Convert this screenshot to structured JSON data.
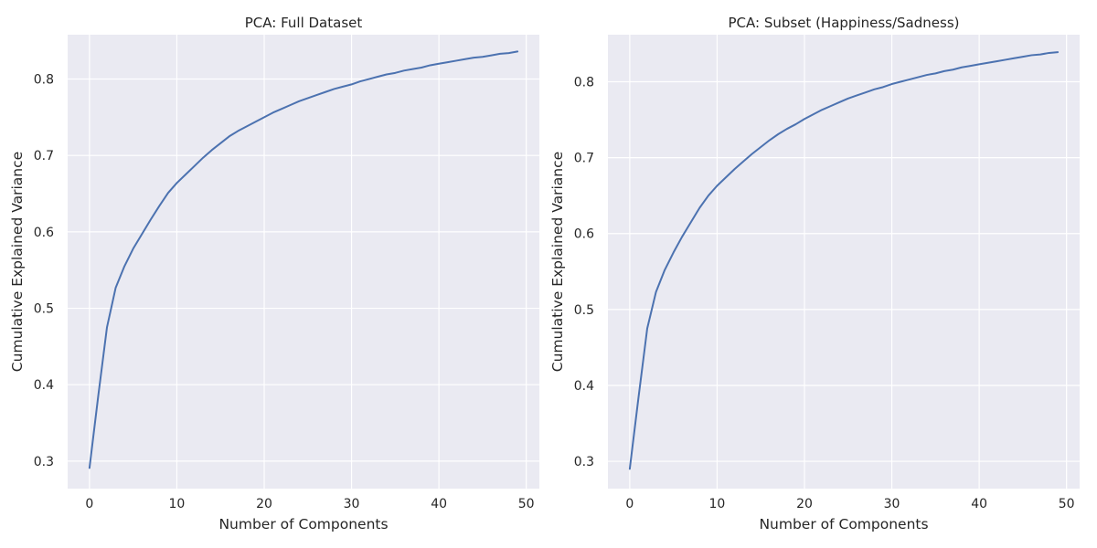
{
  "chart_data": [
    {
      "type": "line",
      "title": "PCA: Full Dataset",
      "xlabel": "Number of Components",
      "ylabel": "Cumulative Explained Variance",
      "xlim": [
        -2.5,
        51.5
      ],
      "ylim": [
        0.264,
        0.858
      ],
      "xticks": [
        0,
        10,
        20,
        30,
        40,
        50
      ],
      "yticks": [
        0.3,
        0.4,
        0.5,
        0.6,
        0.7,
        0.8
      ],
      "xtick_labels": [
        "0",
        "10",
        "20",
        "30",
        "40",
        "50"
      ],
      "ytick_labels": [
        "0.3",
        "0.4",
        "0.5",
        "0.6",
        "0.7",
        "0.8"
      ],
      "grid": true,
      "line_color": "#4c72b0",
      "x": [
        0,
        1,
        2,
        3,
        4,
        5,
        6,
        7,
        8,
        9,
        10,
        11,
        12,
        13,
        14,
        15,
        16,
        17,
        18,
        19,
        20,
        21,
        22,
        23,
        24,
        25,
        26,
        27,
        28,
        29,
        30,
        31,
        32,
        33,
        34,
        35,
        36,
        37,
        38,
        39,
        40,
        41,
        42,
        43,
        44,
        45,
        46,
        47,
        48,
        49
      ],
      "y": [
        0.291,
        0.385,
        0.475,
        0.527,
        0.555,
        0.578,
        0.597,
        0.616,
        0.634,
        0.651,
        0.664,
        0.675,
        0.686,
        0.697,
        0.707,
        0.716,
        0.725,
        0.732,
        0.738,
        0.744,
        0.75,
        0.756,
        0.761,
        0.766,
        0.771,
        0.775,
        0.779,
        0.783,
        0.787,
        0.79,
        0.793,
        0.797,
        0.8,
        0.803,
        0.806,
        0.808,
        0.811,
        0.813,
        0.815,
        0.818,
        0.82,
        0.822,
        0.824,
        0.826,
        0.828,
        0.829,
        0.831,
        0.833,
        0.834,
        0.836
      ]
    },
    {
      "type": "line",
      "title": "PCA: Subset (Happiness/Sadness)",
      "xlabel": "Number of Components",
      "ylabel": "Cumulative Explained Variance",
      "xlim": [
        -2.5,
        51.5
      ],
      "ylim": [
        0.264,
        0.862
      ],
      "xticks": [
        0,
        10,
        20,
        30,
        40,
        50
      ],
      "yticks": [
        0.3,
        0.4,
        0.5,
        0.6,
        0.7,
        0.8
      ],
      "xtick_labels": [
        "0",
        "10",
        "20",
        "30",
        "40",
        "50"
      ],
      "ytick_labels": [
        "0.3",
        "0.4",
        "0.5",
        "0.6",
        "0.7",
        "0.8"
      ],
      "grid": true,
      "line_color": "#4c72b0",
      "x": [
        0,
        1,
        2,
        3,
        4,
        5,
        6,
        7,
        8,
        9,
        10,
        11,
        12,
        13,
        14,
        15,
        16,
        17,
        18,
        19,
        20,
        21,
        22,
        23,
        24,
        25,
        26,
        27,
        28,
        29,
        30,
        31,
        32,
        33,
        34,
        35,
        36,
        37,
        38,
        39,
        40,
        41,
        42,
        43,
        44,
        45,
        46,
        47,
        48,
        49
      ],
      "y": [
        0.29,
        0.384,
        0.475,
        0.523,
        0.552,
        0.575,
        0.596,
        0.615,
        0.634,
        0.65,
        0.663,
        0.674,
        0.685,
        0.695,
        0.705,
        0.714,
        0.723,
        0.731,
        0.738,
        0.744,
        0.751,
        0.757,
        0.763,
        0.768,
        0.773,
        0.778,
        0.782,
        0.786,
        0.79,
        0.793,
        0.797,
        0.8,
        0.803,
        0.806,
        0.809,
        0.811,
        0.814,
        0.816,
        0.819,
        0.821,
        0.823,
        0.825,
        0.827,
        0.829,
        0.831,
        0.833,
        0.835,
        0.836,
        0.838,
        0.839
      ]
    }
  ]
}
